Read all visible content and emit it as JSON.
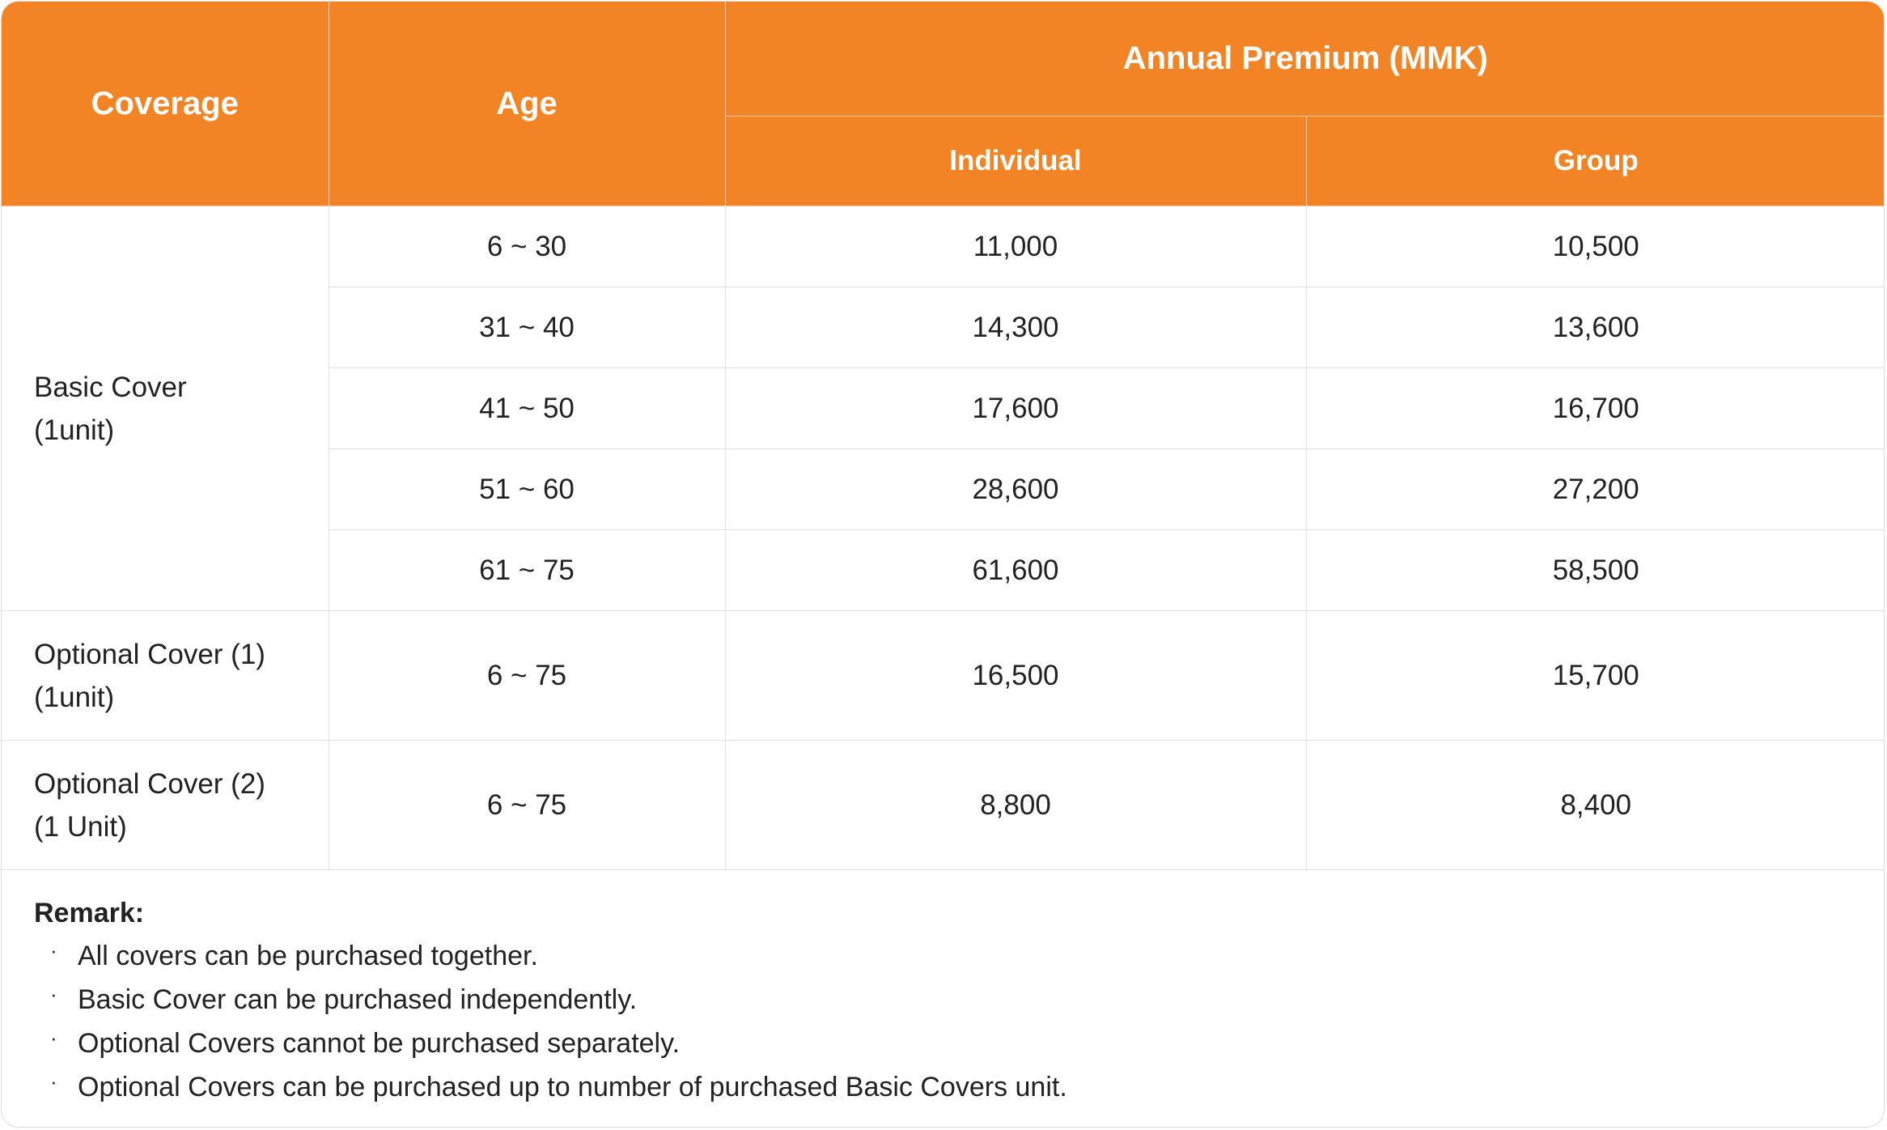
{
  "table": {
    "headers": {
      "coverage": "Coverage",
      "age": "Age",
      "annual_premium": "Annual Premium (MMK)",
      "individual": "Individual",
      "group": "Group"
    },
    "basic": {
      "coverage_line1": "Basic Cover",
      "coverage_line2": "(1unit)",
      "rows": [
        {
          "age": "6 ~ 30",
          "individual": "11,000",
          "group": "10,500"
        },
        {
          "age": "31 ~ 40",
          "individual": "14,300",
          "group": "13,600"
        },
        {
          "age": "41 ~ 50",
          "individual": "17,600",
          "group": "16,700"
        },
        {
          "age": "51 ~ 60",
          "individual": "28,600",
          "group": "27,200"
        },
        {
          "age": "61 ~ 75",
          "individual": "61,600",
          "group": "58,500"
        }
      ]
    },
    "optional1": {
      "coverage_line1": "Optional Cover (1)",
      "coverage_line2": "(1unit)",
      "age": "6 ~ 75",
      "individual": "16,500",
      "group": "15,700"
    },
    "optional2": {
      "coverage_line1": "Optional Cover (2)",
      "coverage_line2": "(1 Unit)",
      "age": "6 ~ 75",
      "individual": "8,800",
      "group": "8,400"
    }
  },
  "remarks": {
    "title": "Remark:",
    "bullet": "·",
    "items": [
      "All covers can be purchased together.",
      "Basic Cover can be purchased independently.",
      "Optional Covers cannot be purchased separately.",
      "Optional Covers can be purchased up to number of purchased Basic Covers unit."
    ]
  },
  "colors": {
    "header_bg": "#F38426",
    "header_text": "#FFFFFF",
    "body_text": "#222222",
    "grid": "#E2E2E2"
  }
}
